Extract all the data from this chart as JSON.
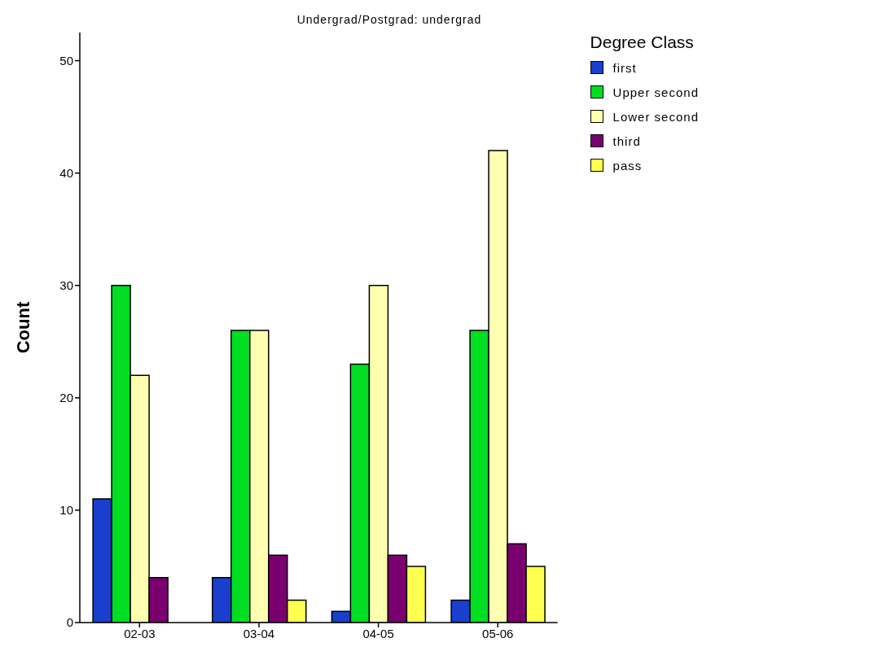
{
  "chart_data": {
    "type": "bar",
    "title": "Undergrad/Postgrad: undergrad",
    "ylabel": "Count",
    "legend_title": "Degree Class",
    "categories": [
      "02-03",
      "03-04",
      "04-05",
      "05-06"
    ],
    "series": [
      {
        "name": "first",
        "color": "#1a3fcc",
        "values": [
          11,
          4,
          1,
          2
        ]
      },
      {
        "name": "Upper second",
        "color": "#00dd22",
        "values": [
          30,
          26,
          23,
          26
        ]
      },
      {
        "name": "Lower second",
        "color": "#ffffb0",
        "values": [
          22,
          26,
          30,
          42
        ]
      },
      {
        "name": "third",
        "color": "#7a0070",
        "values": [
          4,
          6,
          6,
          7
        ]
      },
      {
        "name": "pass",
        "color": "#ffff50",
        "values": [
          null,
          2,
          5,
          5
        ]
      }
    ],
    "ylim": [
      0,
      52.5
    ],
    "yticks": [
      0,
      10,
      20,
      30,
      40,
      50
    ],
    "grid": false,
    "legend": "top right"
  }
}
